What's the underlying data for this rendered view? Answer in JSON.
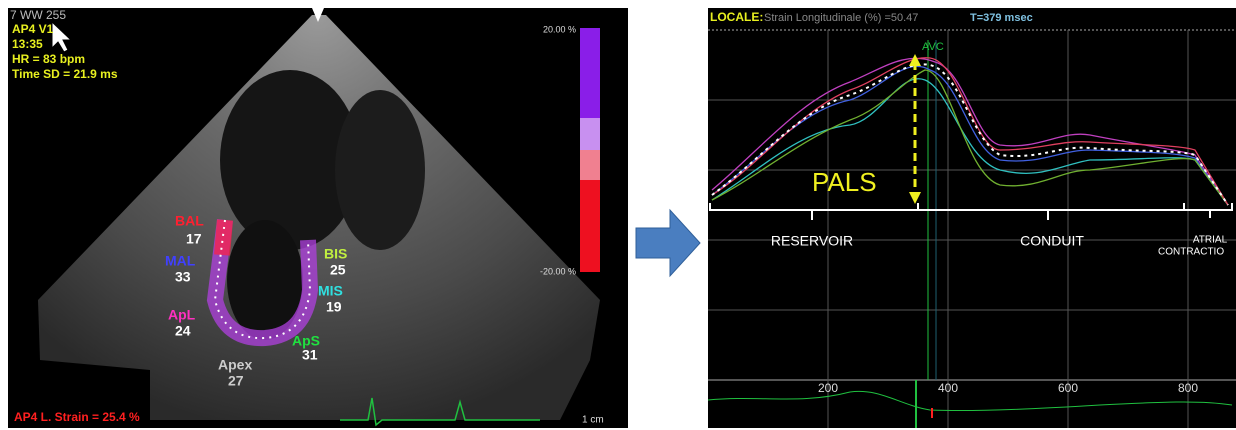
{
  "left_panel": {
    "overlay": [
      "7 WW 255",
      "AP4 V1",
      "13:35",
      "HR = 83 bpm",
      "Time SD = 21.9 ms"
    ],
    "scale_top": "20.00 %",
    "scale_bottom": "-20.00 %",
    "segments": [
      {
        "name": "BAL",
        "value": "17"
      },
      {
        "name": "MAL",
        "value": "33"
      },
      {
        "name": "ApL",
        "value": "24"
      },
      {
        "name": "Apex",
        "value": "27"
      },
      {
        "name": "ApS",
        "value": "31"
      },
      {
        "name": "MIS",
        "value": "19"
      },
      {
        "name": "BIS",
        "value": "25"
      }
    ],
    "global_strain": "AP4 L. Strain = 25.4 %",
    "scale_label": "1 cm"
  },
  "right_panel": {
    "header_label": "LOCALE:",
    "header_text": "Strain Longitudinale (%) =50.47",
    "header_time": "T=379 msec",
    "avc": "AVC",
    "pals": "PALS",
    "phases": [
      "RESERVOIR",
      "CONDUIT",
      "ATRIAL",
      "CONTRACTIO"
    ],
    "x_ticks": [
      "200",
      "400",
      "600",
      "800"
    ]
  }
}
